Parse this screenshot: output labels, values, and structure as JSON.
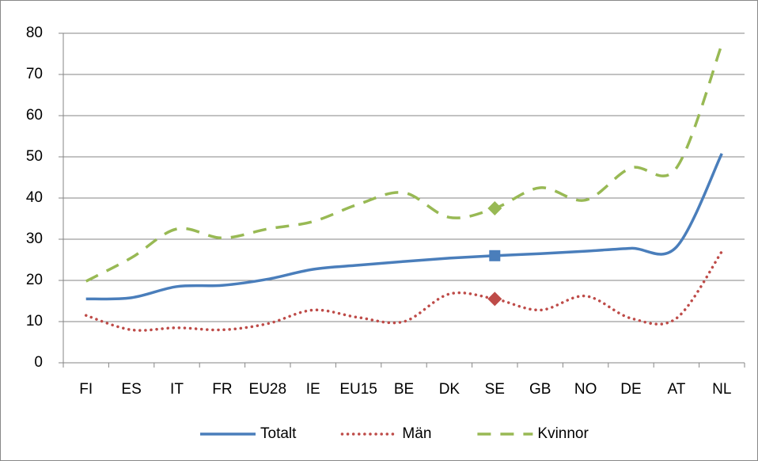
{
  "chart_data": {
    "type": "line",
    "categories": [
      "FI",
      "ES",
      "IT",
      "FR",
      "EU28",
      "IE",
      "EU15",
      "BE",
      "DK",
      "SE",
      "GB",
      "NO",
      "DE",
      "AT",
      "NL"
    ],
    "series": [
      {
        "name": "Totalt",
        "color": "#4a7ebb",
        "style": "solid",
        "marker": "square",
        "values": [
          15.5,
          15.8,
          18.5,
          18.8,
          20.3,
          22.7,
          23.7,
          24.6,
          25.4,
          26,
          26.5,
          27.1,
          27.8,
          28.1,
          50.8
        ]
      },
      {
        "name": "Män",
        "color": "#be4b48",
        "style": "dotted",
        "marker": "diamond",
        "values": [
          11.5,
          8,
          8.5,
          8,
          9.5,
          12.8,
          11,
          10,
          16.7,
          15.5,
          12.8,
          16.2,
          10.8,
          10.8,
          27
        ]
      },
      {
        "name": "Kvinnor",
        "color": "#98b954",
        "style": "dashed",
        "marker": "diamond",
        "values": [
          19.8,
          25.5,
          32.5,
          30.3,
          32.5,
          34.3,
          38.5,
          41.3,
          35.3,
          37.5,
          42.5,
          39.5,
          47.3,
          47.3,
          77.3
        ]
      }
    ],
    "highlight": 9,
    "smooth": true,
    "ylim": [
      0,
      80
    ],
    "yticks": [
      0,
      10,
      20,
      30,
      40,
      50,
      60,
      70,
      80
    ],
    "grid": true,
    "legend": "bottom"
  }
}
